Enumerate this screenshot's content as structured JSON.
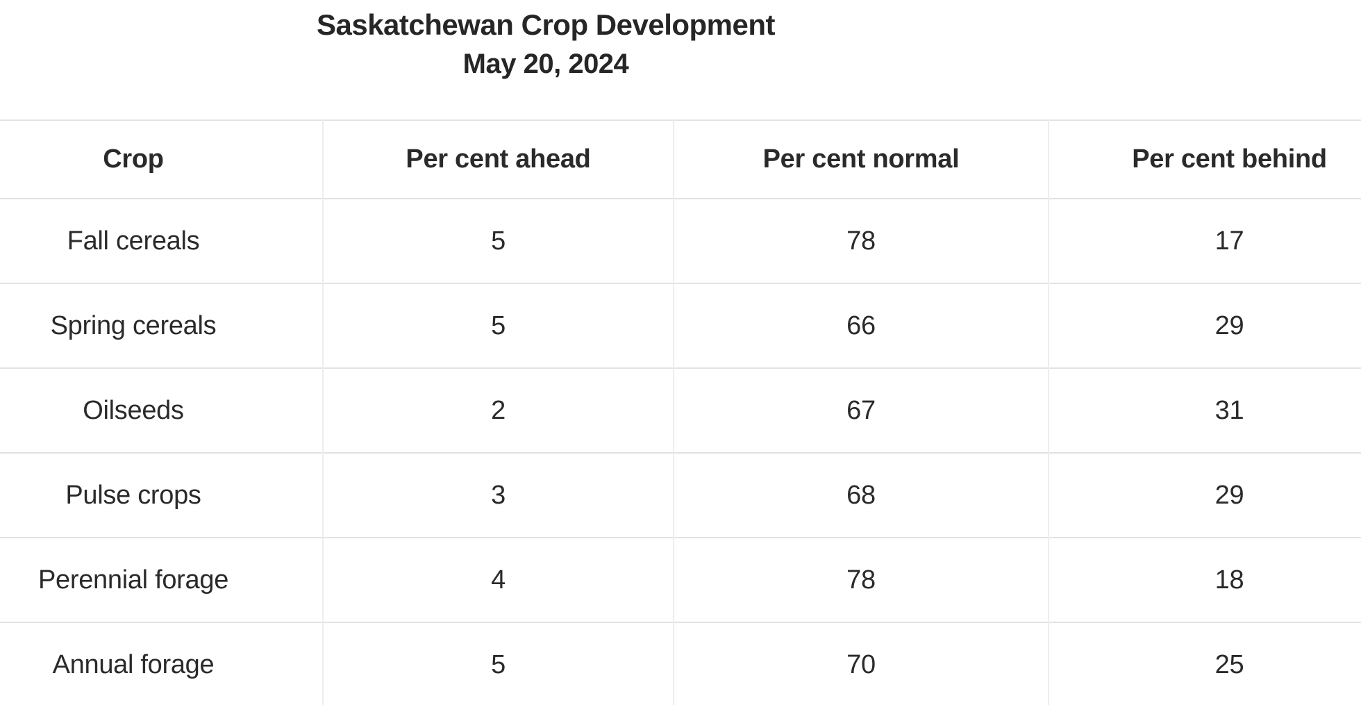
{
  "chart_data": {
    "type": "table",
    "title": "Saskatchewan Crop Development",
    "subtitle": "May 20, 2024",
    "columns": [
      "Crop",
      "Per cent ahead",
      "Per cent normal",
      "Per cent behind"
    ],
    "rows": [
      [
        "Fall cereals",
        5,
        78,
        17
      ],
      [
        "Spring cereals",
        5,
        66,
        29
      ],
      [
        "Oilseeds",
        2,
        67,
        31
      ],
      [
        "Pulse crops",
        3,
        68,
        29
      ],
      [
        "Perennial forage",
        4,
        78,
        18
      ],
      [
        "Annual forage",
        5,
        70,
        25
      ]
    ],
    "layout_hints": {
      "units": "per cent of crop development vs normal",
      "last_column_clipped_by_viewport": true,
      "grid": "light horizontal and vertical hairlines"
    }
  },
  "colors": {
    "page-bg": "#ffffff",
    "title-text": "#262626",
    "text": "#2a2a2a",
    "border-h": "#e2e2e2",
    "border-v": "#ededed"
  }
}
